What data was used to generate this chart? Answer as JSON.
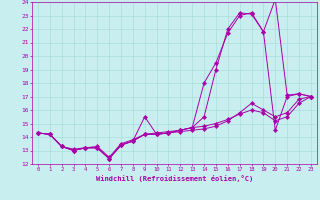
{
  "title": "",
  "xlabel": "Windchill (Refroidissement éolien,°C)",
  "bg_color": "#c8eef0",
  "line_color": "#aa00aa",
  "grid_color": "#aadddd",
  "xlim": [
    -0.5,
    23.5
  ],
  "ylim": [
    12,
    24
  ],
  "xticks": [
    0,
    1,
    2,
    3,
    4,
    5,
    6,
    7,
    8,
    9,
    10,
    11,
    12,
    13,
    14,
    15,
    16,
    17,
    18,
    19,
    20,
    21,
    22,
    23
  ],
  "yticks": [
    12,
    13,
    14,
    15,
    16,
    17,
    18,
    19,
    20,
    21,
    22,
    23,
    24
  ],
  "lines": [
    {
      "x": [
        0,
        1,
        2,
        3,
        4,
        5,
        6,
        7,
        8,
        9,
        10,
        11,
        12,
        13,
        14,
        15,
        16,
        17,
        18,
        19,
        20,
        21,
        22,
        23
      ],
      "y": [
        14.3,
        14.2,
        13.3,
        13.0,
        13.2,
        13.2,
        12.4,
        13.4,
        13.7,
        15.5,
        14.2,
        14.3,
        14.5,
        14.7,
        18.0,
        19.5,
        21.7,
        23.0,
        23.2,
        21.8,
        24.2,
        17.1,
        17.2,
        17.0
      ]
    },
    {
      "x": [
        0,
        1,
        2,
        3,
        4,
        5,
        6,
        7,
        8,
        9,
        10,
        11,
        12,
        13,
        14,
        15,
        16,
        17,
        18,
        19,
        20,
        21,
        22,
        23
      ],
      "y": [
        14.3,
        14.2,
        13.3,
        13.0,
        13.2,
        13.2,
        12.4,
        13.4,
        13.7,
        14.2,
        14.2,
        14.3,
        14.5,
        14.7,
        15.5,
        19.0,
        22.0,
        23.2,
        23.1,
        21.8,
        14.5,
        17.0,
        17.2,
        17.0
      ]
    },
    {
      "x": [
        0,
        1,
        2,
        3,
        4,
        5,
        6,
        7,
        8,
        9,
        10,
        11,
        12,
        13,
        14,
        15,
        16,
        17,
        18,
        19,
        20,
        21,
        22,
        23
      ],
      "y": [
        14.3,
        14.2,
        13.3,
        13.0,
        13.2,
        13.2,
        12.4,
        13.4,
        13.7,
        14.2,
        14.2,
        14.3,
        14.4,
        14.5,
        14.6,
        14.8,
        15.2,
        15.8,
        16.5,
        16.0,
        15.5,
        15.8,
        16.8,
        17.0
      ]
    },
    {
      "x": [
        0,
        1,
        2,
        3,
        4,
        5,
        6,
        7,
        8,
        9,
        10,
        11,
        12,
        13,
        14,
        15,
        16,
        17,
        18,
        19,
        20,
        21,
        22,
        23
      ],
      "y": [
        14.3,
        14.2,
        13.3,
        13.1,
        13.2,
        13.3,
        12.5,
        13.5,
        13.8,
        14.2,
        14.3,
        14.4,
        14.5,
        14.7,
        14.8,
        15.0,
        15.3,
        15.7,
        16.0,
        15.8,
        15.2,
        15.5,
        16.5,
        17.0
      ]
    }
  ]
}
